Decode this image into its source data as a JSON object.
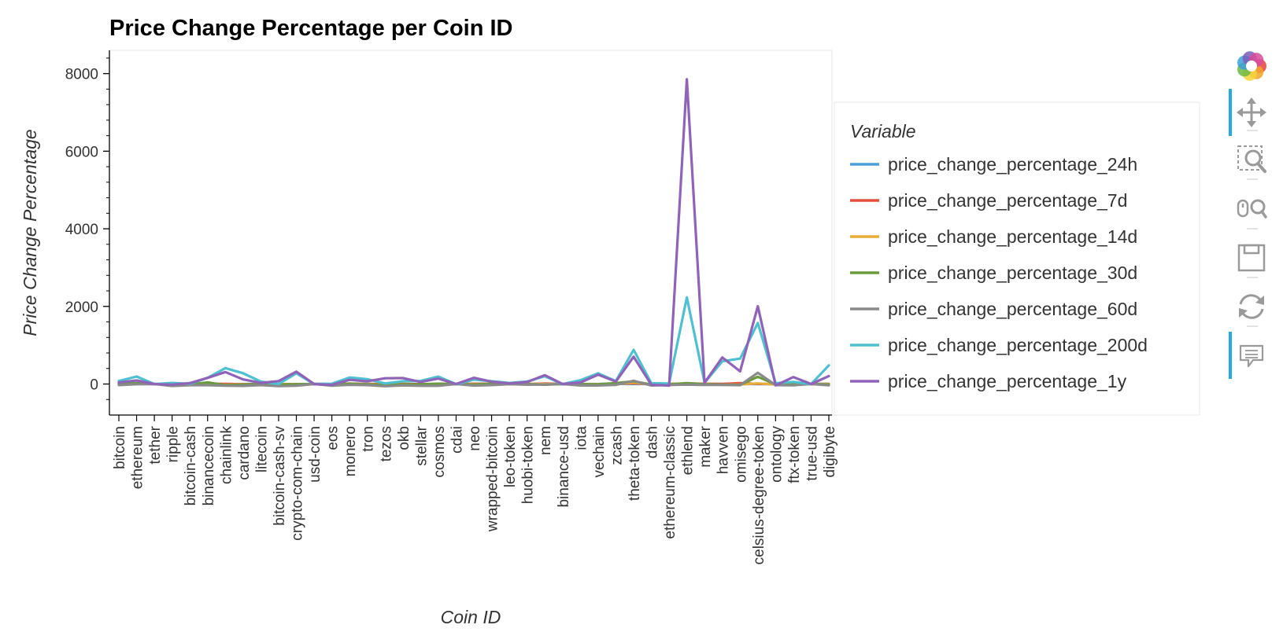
{
  "chart_data": {
    "type": "line",
    "title": "Price Change Percentage per Coin ID",
    "xlabel": "Coin ID",
    "ylabel": "Price Change Percentage",
    "ylim": [
      -800,
      8600
    ],
    "yticks": [
      0,
      2000,
      4000,
      6000,
      8000
    ],
    "grid": false,
    "legend_title": "Variable",
    "legend_position": "right",
    "categories": [
      "bitcoin",
      "ethereum",
      "tether",
      "ripple",
      "bitcoin-cash",
      "binancecoin",
      "chainlink",
      "cardano",
      "litecoin",
      "bitcoin-cash-sv",
      "crypto-com-chain",
      "usd-coin",
      "eos",
      "monero",
      "tron",
      "tezos",
      "okb",
      "stellar",
      "cosmos",
      "cdai",
      "neo",
      "wrapped-bitcoin",
      "leo-token",
      "huobi-token",
      "nem",
      "binance-usd",
      "iota",
      "vechain",
      "zcash",
      "theta-token",
      "dash",
      "ethereum-classic",
      "ethlend",
      "maker",
      "havven",
      "omisego",
      "celsius-degree-token",
      "ontology",
      "ftx-token",
      "true-usd",
      "digibyte"
    ],
    "series": [
      {
        "name": "price_change_percentage_24h",
        "color": "#4a9fd8",
        "values": [
          1,
          0,
          0,
          0,
          2,
          1,
          -1,
          0,
          0,
          -2,
          -1,
          0,
          -1,
          1,
          0,
          -2,
          -1,
          -1,
          -2,
          0,
          1,
          1,
          0,
          0,
          3,
          0,
          -1,
          0,
          2,
          0,
          0,
          0,
          -1,
          -1,
          2,
          2,
          -1,
          1,
          -1,
          0,
          0
        ]
      },
      {
        "name": "price_change_percentage_7d",
        "color": "#e4503c",
        "values": [
          7,
          10,
          0,
          -17,
          15,
          6,
          4,
          -3,
          -10,
          -1,
          -6,
          0,
          -3,
          10,
          0,
          2,
          2,
          -3,
          0,
          0,
          7,
          8,
          -1,
          -3,
          12,
          0,
          -5,
          -3,
          4,
          16,
          -3,
          1,
          14,
          6,
          1,
          23,
          5,
          -4,
          5,
          0,
          3
        ]
      },
      {
        "name": "price_change_percentage_14d",
        "color": "#e7ad3a",
        "values": [
          6,
          7,
          0,
          -15,
          -2,
          12,
          -21,
          -6,
          -18,
          -3,
          -5,
          0,
          -1,
          -11,
          -7,
          -11,
          -9,
          -11,
          5,
          0,
          -10,
          5,
          7,
          3,
          0,
          0,
          -8,
          -2,
          -2,
          39,
          -13,
          -3,
          5,
          -2,
          -20,
          -14,
          17,
          -12,
          -6,
          -1,
          -1
        ]
      },
      {
        "name": "price_change_percentage_30d",
        "color": "#6a9b3f",
        "values": [
          7,
          25,
          0,
          -11,
          -12,
          40,
          -28,
          -16,
          -3,
          -17,
          -6,
          0,
          -13,
          10,
          -5,
          -30,
          -10,
          -7,
          8,
          0,
          -14,
          9,
          -3,
          0,
          -18,
          0,
          -7,
          -5,
          25,
          70,
          -13,
          -10,
          25,
          -4,
          -15,
          -23,
          187,
          -9,
          14,
          0,
          -10
        ]
      },
      {
        "name": "price_change_percentage_60d",
        "color": "#8a8a8a",
        "values": [
          -29,
          -5,
          0,
          -50,
          -31,
          -30,
          -45,
          -48,
          -28,
          -55,
          -44,
          0,
          -44,
          -20,
          -28,
          -56,
          -37,
          -47,
          -47,
          0,
          -40,
          -29,
          -4,
          -18,
          -12,
          0,
          -38,
          -38,
          -23,
          83,
          -38,
          -27,
          -17,
          -25,
          -22,
          -31,
          289,
          -28,
          -32,
          0,
          -35
        ]
      },
      {
        "name": "price_change_percentage_200d",
        "color": "#4ec0d0",
        "values": [
          77,
          193,
          -1,
          28,
          7,
          160,
          409,
          277,
          61,
          1,
          276,
          1,
          9,
          169,
          124,
          15,
          71,
          80,
          190,
          -3,
          114,
          72,
          27,
          63,
          200,
          -2,
          98,
          276,
          76,
          882,
          20,
          15,
          2233,
          35,
          585,
          654,
          1574,
          21,
          54,
          -3,
          481
        ]
      },
      {
        "name": "price_change_percentage_1y",
        "color": "#8e63b8",
        "values": [
          38,
          92,
          -2,
          -17,
          23,
          159,
          308,
          117,
          29,
          75,
          318,
          -1,
          -22,
          107,
          70,
          149,
          152,
          52,
          140,
          0,
          160,
          58,
          16,
          50,
          227,
          0,
          38,
          241,
          64,
          704,
          -20,
          -40,
          7852,
          32,
          685,
          326,
          2003,
          -36,
          178,
          1,
          205
        ]
      }
    ]
  },
  "toolbar": {
    "tools": [
      {
        "name": "bokeh-logo",
        "icon": "bokeh-logo-icon"
      },
      {
        "name": "pan",
        "icon": "pan-icon",
        "active": true
      },
      {
        "name": "box-zoom",
        "icon": "box-zoom-icon"
      },
      {
        "name": "wheel-zoom",
        "icon": "wheel-zoom-icon"
      },
      {
        "name": "save",
        "icon": "save-icon"
      },
      {
        "name": "reset",
        "icon": "reset-icon"
      },
      {
        "name": "hover",
        "icon": "hover-icon",
        "active": true
      }
    ],
    "accent_color": "#26aae1"
  }
}
